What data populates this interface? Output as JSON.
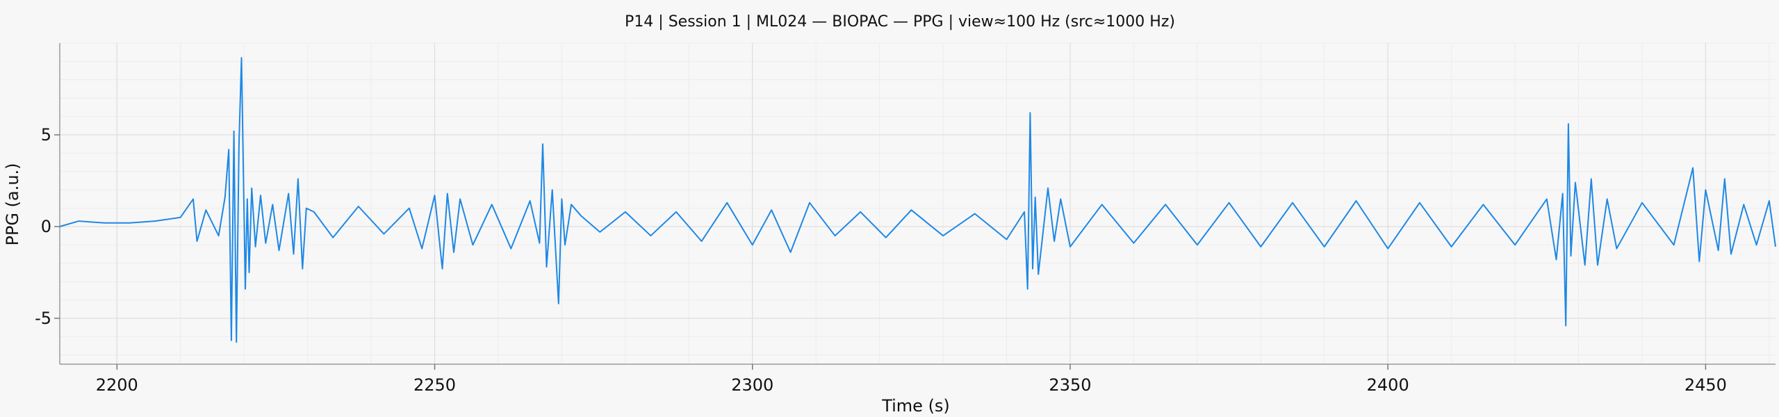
{
  "chart_data": {
    "type": "line",
    "title": "P14 | Session 1 | ML024 — BIOPAC — PPG | view≈100 Hz (src≈1000 Hz)",
    "xlabel": "Time (s)",
    "ylabel": "PPG (a.u.)",
    "xlim": [
      2191,
      2461
    ],
    "ylim": [
      -7.5,
      10
    ],
    "xticks": [
      2200,
      2250,
      2300,
      2350,
      2400,
      2450
    ],
    "yticks": [
      -5,
      0,
      5
    ],
    "grid": true,
    "legend": "none",
    "line_color": "#1e88e5",
    "series": [
      {
        "x": [
          2191,
          2194,
          2198,
          2202,
          2206,
          2210,
          2212,
          2212.6,
          2214,
          2216,
          2217,
          2217.6,
          2218,
          2218.4,
          2218.8,
          2219.2,
          2219.6,
          2220.2,
          2220.5,
          2220.8,
          2221.2,
          2221.8,
          2222.6,
          2223.4,
          2224.5,
          2225.5,
          2227,
          2227.8,
          2228.5,
          2229.2,
          2229.8,
          2231,
          2234,
          2238,
          2242,
          2246,
          2248,
          2250,
          2251.2,
          2252,
          2253,
          2254,
          2256,
          2259,
          2262,
          2265,
          2266.5,
          2267,
          2267.6,
          2268.5,
          2269.5,
          2270,
          2270.5,
          2271.5,
          2273,
          2276,
          2280,
          2284,
          2288,
          2292,
          2296,
          2300,
          2303,
          2306,
          2309,
          2313,
          2317,
          2321,
          2325,
          2330,
          2335,
          2340,
          2342.8,
          2343.3,
          2343.7,
          2344.1,
          2344.5,
          2345,
          2346.5,
          2347.5,
          2348.5,
          2350,
          2355,
          2360,
          2365,
          2370,
          2375,
          2380,
          2385,
          2390,
          2395,
          2400,
          2405,
          2410,
          2415,
          2420,
          2425,
          2426.5,
          2427.5,
          2428,
          2428.4,
          2428.8,
          2429.5,
          2431,
          2432,
          2433,
          2434.5,
          2436,
          2440,
          2445,
          2448,
          2449,
          2450,
          2452,
          2453,
          2454,
          2456,
          2458,
          2460,
          2461
        ],
        "y": [
          0,
          0.3,
          0.2,
          0.2,
          0.3,
          0.5,
          1.5,
          -0.8,
          0.9,
          -0.5,
          1.6,
          4.2,
          -6.2,
          5.2,
          -6.3,
          4.5,
          9.2,
          -3.4,
          1.5,
          -2.5,
          2.1,
          -1.1,
          1.7,
          -0.9,
          1.2,
          -1.3,
          1.8,
          -1.5,
          2.6,
          -2.3,
          1,
          0.8,
          -0.6,
          1.1,
          -0.4,
          1,
          -1.2,
          1.7,
          -2.3,
          1.8,
          -1.4,
          1.5,
          -1,
          1.2,
          -1.2,
          1.4,
          -0.9,
          4.5,
          -2.2,
          2,
          -4.2,
          1.5,
          -1,
          1.2,
          0.6,
          -0.3,
          0.8,
          -0.5,
          0.8,
          -0.8,
          1.3,
          -1,
          0.9,
          -1.4,
          1.3,
          -0.5,
          0.8,
          -0.6,
          0.9,
          -0.5,
          0.7,
          -0.7,
          0.8,
          -3.4,
          6.2,
          -2.3,
          1.6,
          -2.6,
          2.1,
          -0.8,
          1.5,
          -1.1,
          1.2,
          -0.9,
          1.2,
          -1,
          1.3,
          -1.1,
          1.3,
          -1.1,
          1.4,
          -1.2,
          1.3,
          -1.1,
          1.2,
          -1,
          1.5,
          -1.8,
          1.8,
          -5.4,
          5.6,
          -1.6,
          2.4,
          -2.1,
          2.6,
          -2.1,
          1.5,
          -1.2,
          1.3,
          -1,
          3.2,
          -1.9,
          2,
          -1.3,
          2.6,
          -1.5,
          1.2,
          -1,
          1.4,
          -1.1
        ]
      }
    ]
  }
}
